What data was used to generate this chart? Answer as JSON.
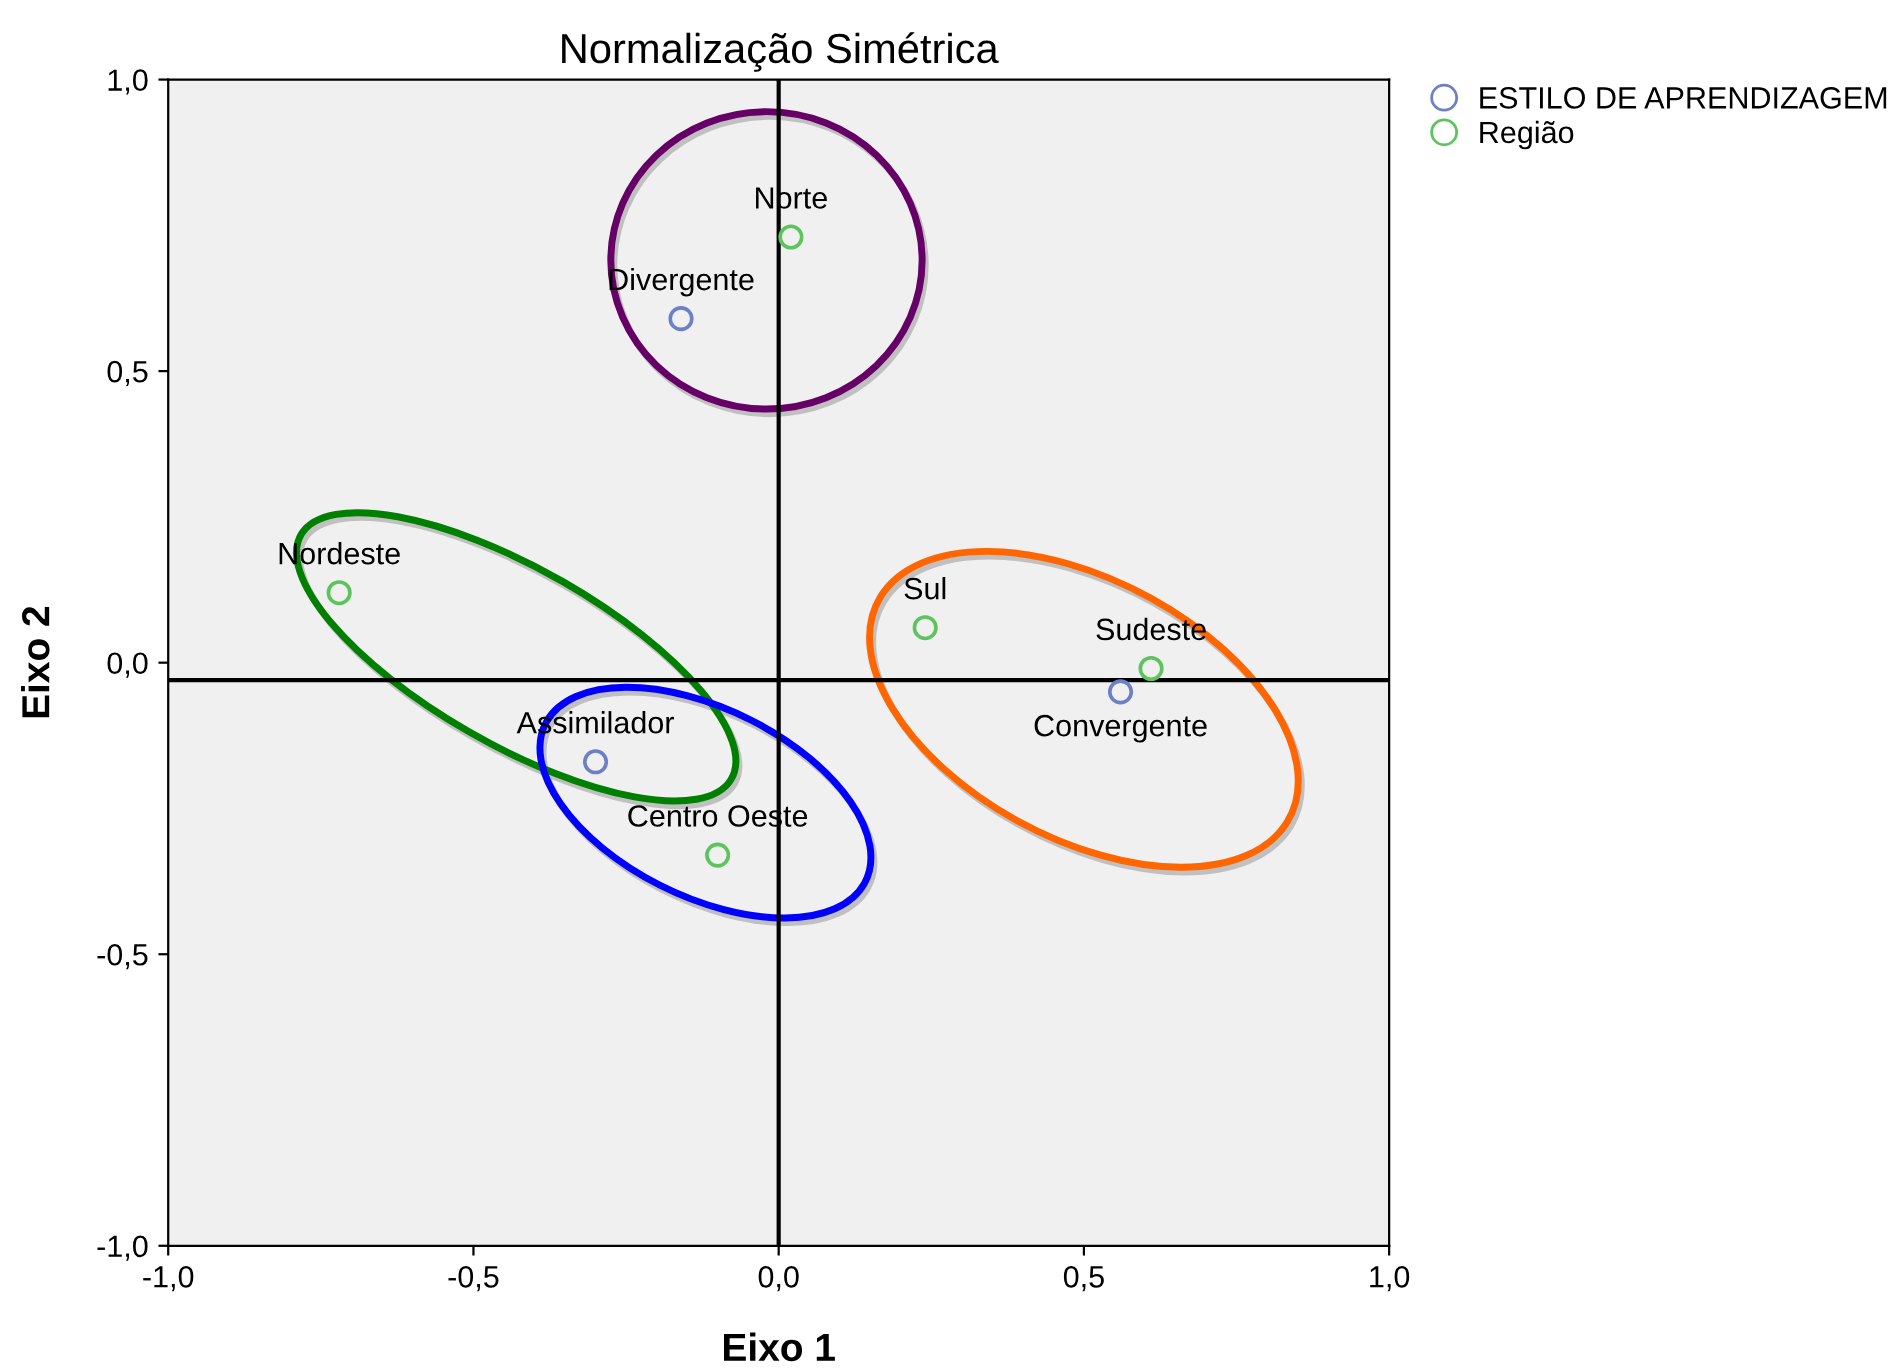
{
  "chart_data": {
    "type": "scatter",
    "title": "Normalização Simétrica",
    "xlabel": "Eixo 1",
    "ylabel": "Eixo 2",
    "series": [
      {
        "name": "ESTILO DE APRENDIZAGEM",
        "color": "#6b80c6",
        "x": [
          -0.16,
          0.56,
          -0.3
        ],
        "values": [
          0.59,
          -0.05,
          -0.17
        ]
      },
      {
        "name": "Região",
        "color": "#5cc45c",
        "x": [
          0.02,
          -0.72,
          0.24,
          0.61,
          -0.1
        ],
        "values": [
          0.73,
          0.12,
          0.06,
          -0.01,
          -0.33
        ]
      }
    ],
    "annotations": [
      {
        "text": "Divergente",
        "x": -0.16,
        "y": 0.59
      },
      {
        "text": "Convergente",
        "x": 0.56,
        "y": -0.05
      },
      {
        "text": "Assimilador",
        "x": -0.3,
        "y": -0.17
      },
      {
        "text": "Norte",
        "x": 0.02,
        "y": 0.73
      },
      {
        "text": "Nordeste",
        "x": -0.72,
        "y": 0.12
      },
      {
        "text": "Sul",
        "x": 0.24,
        "y": 0.06
      },
      {
        "text": "Sudeste",
        "x": 0.61,
        "y": -0.01
      },
      {
        "text": "Centro Oeste",
        "x": -0.1,
        "y": -0.33
      }
    ],
    "ref_lines": [
      {
        "axis": "x",
        "value": 0,
        "color": "#000000"
      },
      {
        "axis": "y",
        "value": -0.03,
        "color": "#000000"
      }
    ],
    "xlim": [
      -1.0,
      1.0
    ],
    "ylim": [
      -1.0,
      1.0
    ],
    "xticks": [
      {
        "value": -1.0,
        "label": "-1,0"
      },
      {
        "value": -0.5,
        "label": "-0,5"
      },
      {
        "value": 0.0,
        "label": "0,0"
      },
      {
        "value": 0.5,
        "label": "0,5"
      },
      {
        "value": 1.0,
        "label": "1,0"
      }
    ],
    "yticks": [
      {
        "value": -1.0,
        "label": "-1,0"
      },
      {
        "value": -0.5,
        "label": "-0,5"
      },
      {
        "value": 0.0,
        "label": "0,0"
      },
      {
        "value": 0.5,
        "label": "0,5"
      },
      {
        "value": 1.0,
        "label": "1,0"
      }
    ],
    "marker": "circle",
    "grid": false,
    "legend": "top right"
  }
}
